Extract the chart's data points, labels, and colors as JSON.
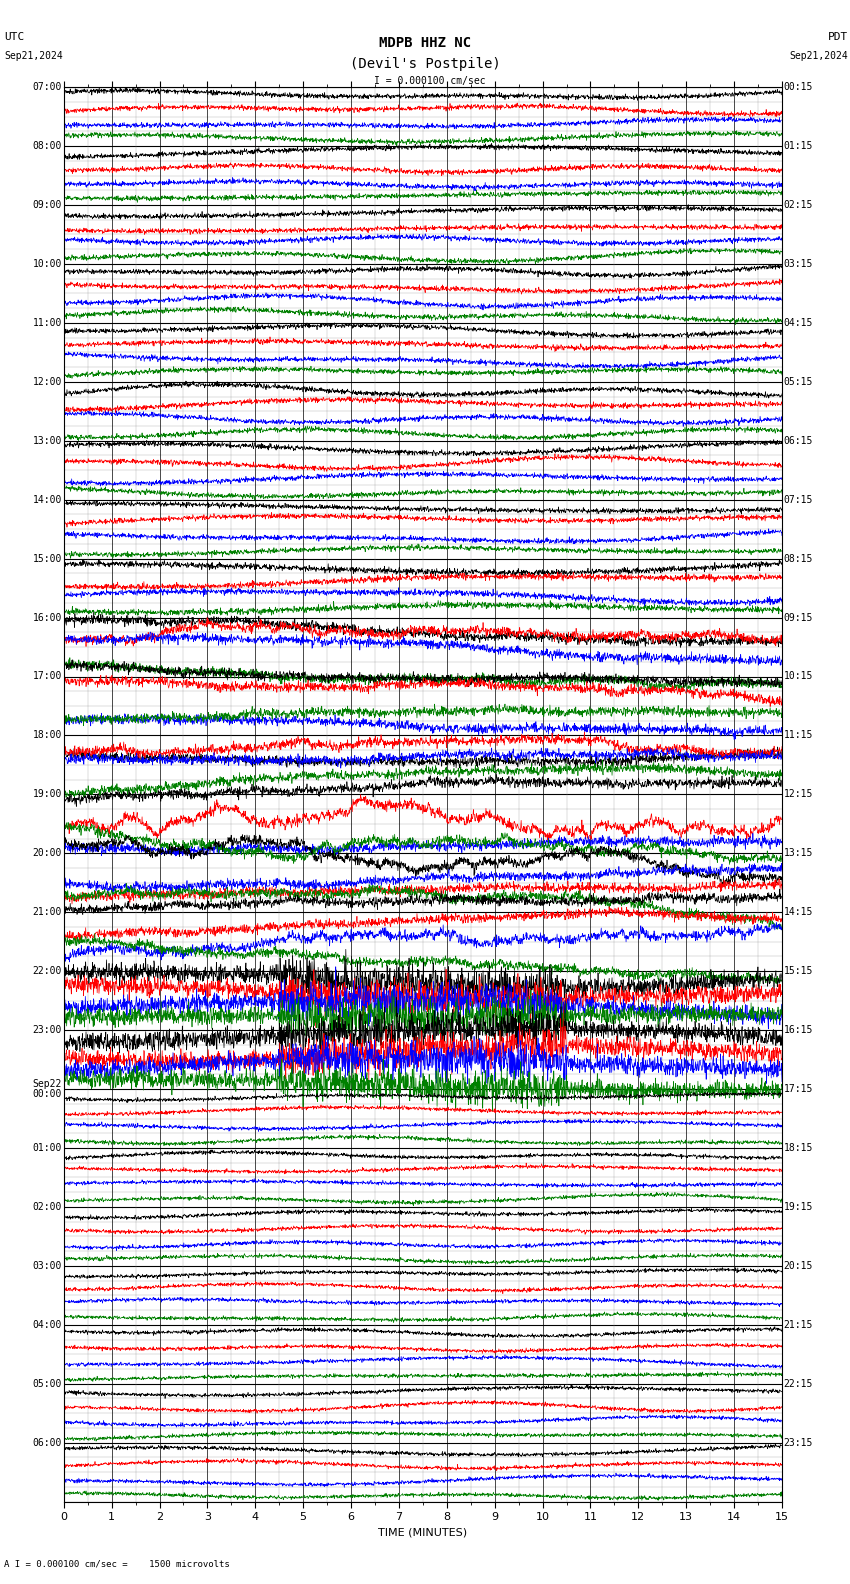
{
  "title_line1": "MDPB HHZ NC",
  "title_line2": "(Devil's Postpile)",
  "scale_label": "= 0.000100 cm/sec",
  "left_label": "UTC",
  "left_date": "Sep21,2024",
  "right_label": "PDT",
  "right_date": "Sep21,2024",
  "bottom_label": "A I = 0.000100 cm/sec =    1500 microvolts",
  "xlabel": "TIME (MINUTES)",
  "bg_color": "#ffffff",
  "grid_color": "#000000",
  "trace_colors": [
    "black",
    "red",
    "blue",
    "green"
  ],
  "left_times": [
    "07:00",
    "",
    "",
    "",
    "08:00",
    "",
    "",
    "",
    "09:00",
    "",
    "",
    "",
    "10:00",
    "",
    "",
    "",
    "11:00",
    "",
    "",
    "",
    "12:00",
    "",
    "",
    "",
    "13:00",
    "",
    "",
    "",
    "14:00",
    "",
    "",
    "",
    "15:00",
    "",
    "",
    "",
    "16:00",
    "",
    "",
    "",
    "17:00",
    "",
    "",
    "",
    "18:00",
    "",
    "",
    "",
    "19:00",
    "",
    "",
    "",
    "20:00",
    "",
    "",
    "",
    "21:00",
    "",
    "",
    "",
    "22:00",
    "",
    "",
    "",
    "23:00",
    "",
    "",
    "",
    "Sep22\n00:00",
    "",
    "",
    "",
    "01:00",
    "",
    "",
    "",
    "02:00",
    "",
    "",
    "",
    "03:00",
    "",
    "",
    "",
    "04:00",
    "",
    "",
    "",
    "05:00",
    "",
    "",
    "",
    "06:00",
    "",
    "",
    ""
  ],
  "right_times": [
    "00:15",
    "",
    "",
    "",
    "01:15",
    "",
    "",
    "",
    "02:15",
    "",
    "",
    "",
    "03:15",
    "",
    "",
    "",
    "04:15",
    "",
    "",
    "",
    "05:15",
    "",
    "",
    "",
    "06:15",
    "",
    "",
    "",
    "07:15",
    "",
    "",
    "",
    "08:15",
    "",
    "",
    "",
    "09:15",
    "",
    "",
    "",
    "10:15",
    "",
    "",
    "",
    "11:15",
    "",
    "",
    "",
    "12:15",
    "",
    "",
    "",
    "13:15",
    "",
    "",
    "",
    "14:15",
    "",
    "",
    "",
    "15:15",
    "",
    "",
    "",
    "16:15",
    "",
    "",
    "",
    "17:15",
    "",
    "",
    "",
    "18:15",
    "",
    "",
    "",
    "19:15",
    "",
    "",
    "",
    "20:15",
    "",
    "",
    "",
    "21:15",
    "",
    "",
    "",
    "22:15",
    "",
    "",
    "",
    "23:15",
    "",
    "",
    ""
  ],
  "num_groups": 24,
  "traces_per_group": 4,
  "x_min": 0,
  "x_max": 15,
  "x_ticks": [
    0,
    1,
    2,
    3,
    4,
    5,
    6,
    7,
    8,
    9,
    10,
    11,
    12,
    13,
    14,
    15
  ],
  "font_size_title": 10,
  "font_size_labels": 8,
  "font_size_ticks": 8,
  "font_size_time": 7,
  "seed": 42
}
